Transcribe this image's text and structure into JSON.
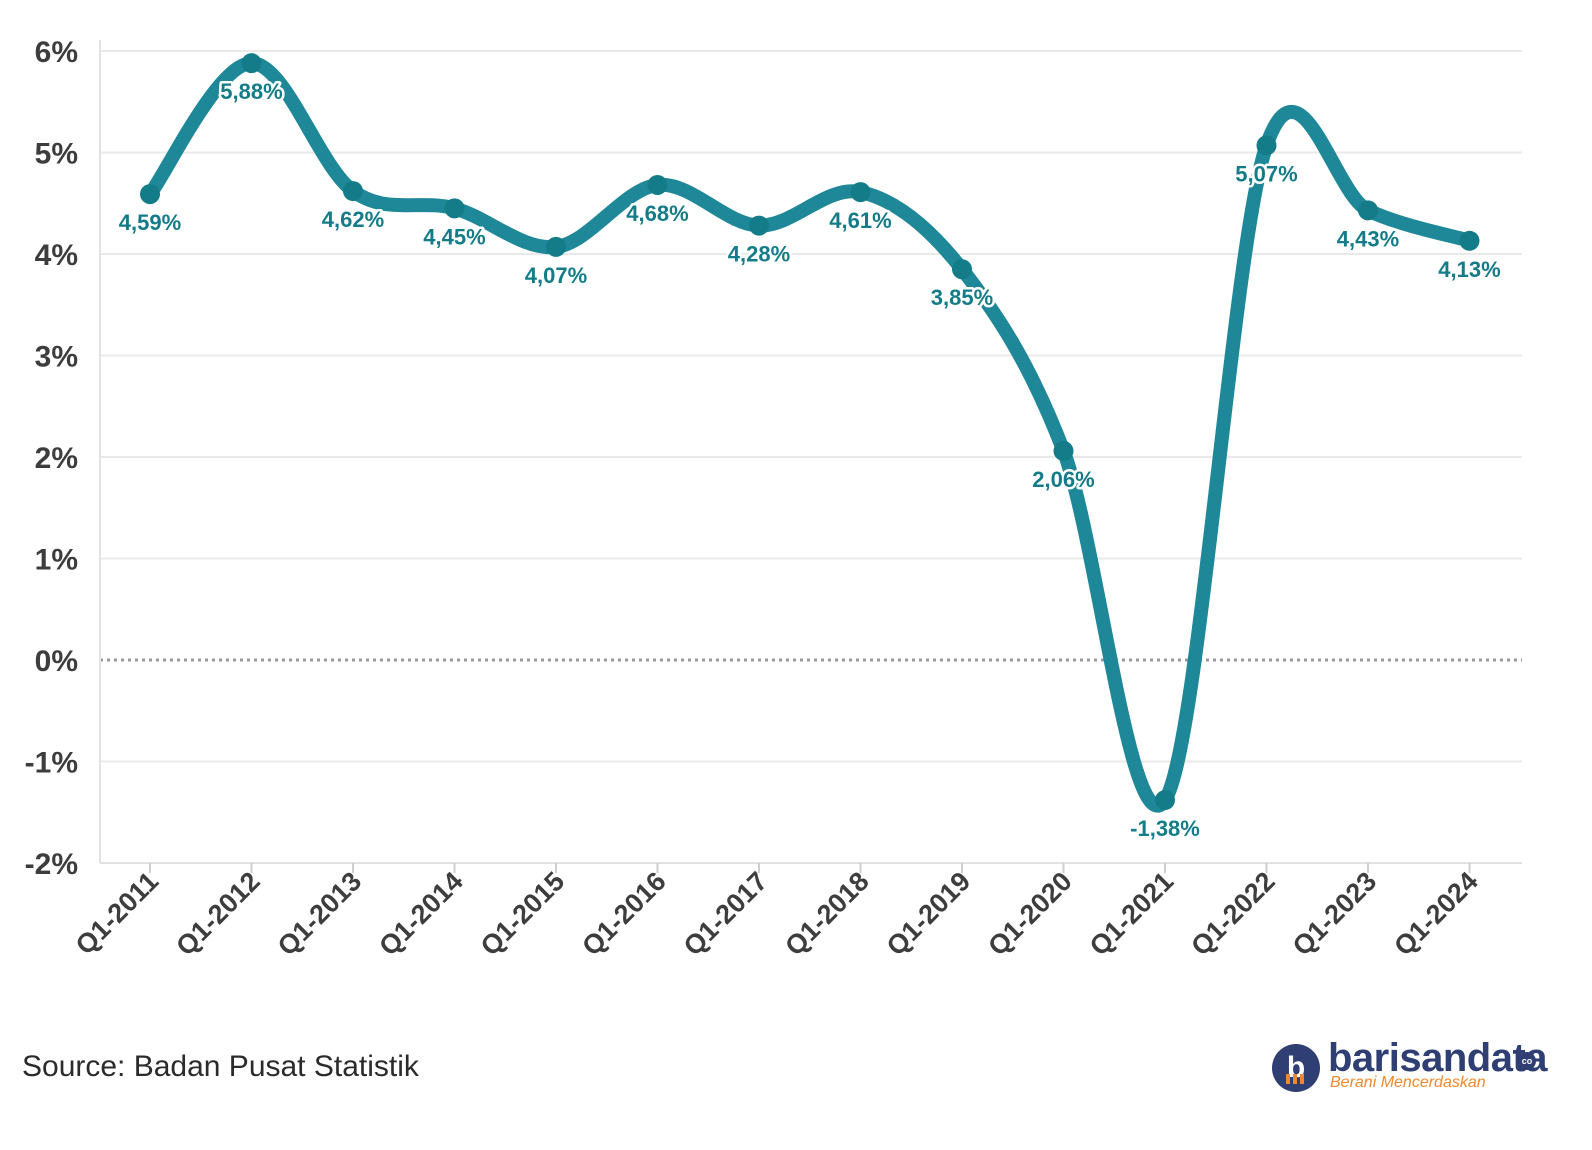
{
  "chart_data": {
    "type": "line",
    "title": "",
    "xlabel": "",
    "ylabel": "",
    "categories": [
      "Q1-2011",
      "Q1-2012",
      "Q1-2013",
      "Q1-2014",
      "Q1-2015",
      "Q1-2016",
      "Q1-2017",
      "Q1-2018",
      "Q1-2019",
      "Q1-2020",
      "Q1-2021",
      "Q1-2022",
      "Q1-2023",
      "Q1-2024"
    ],
    "series": [
      {
        "values": [
          4.59,
          5.88,
          4.62,
          4.45,
          4.07,
          4.68,
          4.28,
          4.61,
          3.85,
          2.06,
          -1.38,
          5.07,
          4.43,
          4.13
        ],
        "labels": [
          "4,59%",
          "5,88%",
          "4,62%",
          "4,45%",
          "4,07%",
          "4,68%",
          "4,28%",
          "4,61%",
          "3,85%",
          "2,06%",
          "-1,38%",
          "5,07%",
          "4,43%",
          "4,13%"
        ]
      }
    ],
    "ylim": [
      -2,
      6
    ],
    "yticks": [
      "6%",
      "5%",
      "4%",
      "3%",
      "2%",
      "1%",
      "0%",
      "-1%",
      "-2%"
    ],
    "grid": true,
    "legend": "none",
    "line_color": "#1e8898",
    "marker_color": "#137c88",
    "label_color": "#137c88",
    "zero_line_color": "#9a9a9a"
  },
  "footer": {
    "source": "Source: Badan Pusat Statistik",
    "brand_name": "barisandata",
    "brand_suffix": "co",
    "brand_tagline": "Berani Mencerdaskan",
    "brand_mark": "b"
  }
}
